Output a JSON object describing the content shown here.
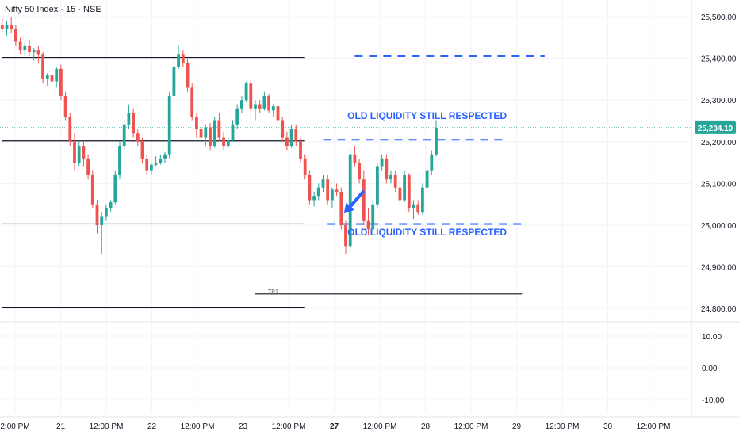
{
  "header": {
    "title": "Nifty 50 Index · 15 · NSE"
  },
  "colors": {
    "up": "#26a69a",
    "down": "#ef5350",
    "annotation": "#2962ff",
    "last_price_bg": "#26a69a",
    "level_line": "#131722",
    "grid": "#f0f3fa",
    "axis_text": "#131722"
  },
  "chart_data": {
    "type": "candlestick",
    "price_axis": {
      "ylim": [
        24770,
        25540
      ],
      "ticks": [
        "25,500.00",
        "25,400.00",
        "25,300.00",
        "25,200.00",
        "25,100.00",
        "25,000.00",
        "24,900.00",
        "24,800.00"
      ]
    },
    "oscillator_axis": {
      "ylim": [
        -14,
        14
      ],
      "ticks": [
        "10.00",
        "0.00",
        "-10.00"
      ]
    },
    "time_ticks": [
      "2:00 PM",
      "21",
      "12:00 PM",
      "22",
      "12:00 PM",
      "23",
      "12:00 PM",
      "27",
      "12:00 PM",
      "28",
      "12:00 PM",
      "29",
      "12:00 PM",
      "30",
      "12:00 PM"
    ],
    "bold_time_ticks": [
      "27"
    ],
    "last_price": {
      "label": "25,234.10",
      "value": 25234.1
    },
    "horizontal_levels": [
      {
        "style": "solid",
        "value": 25402,
        "x_range": [
          0,
          67
        ]
      },
      {
        "style": "solid",
        "value": 25202,
        "x_range": [
          0,
          67
        ]
      },
      {
        "style": "solid",
        "value": 25003,
        "x_range": [
          0,
          67
        ]
      },
      {
        "style": "solid",
        "value": 24803,
        "x_range": [
          0,
          67
        ]
      },
      {
        "style": "solid",
        "value": 24835,
        "x_range": [
          56,
          115
        ],
        "label": "TP1"
      },
      {
        "style": "dashed",
        "value": 25405,
        "x_range": [
          78,
          120
        ]
      },
      {
        "style": "dashed",
        "value": 25205,
        "x_range": [
          71,
          111
        ]
      },
      {
        "style": "dashed",
        "value": 25003,
        "x_range": [
          72,
          115
        ]
      }
    ],
    "annotations": [
      {
        "text": "OLD LIQUIDITY STILL RESPECTED",
        "value": 25262,
        "x": 94
      },
      {
        "text": "OLD LIQUIDITY STILL RESPECTED",
        "value": 24983,
        "x": 94
      }
    ],
    "arrow": {
      "from": [
        80,
        25082
      ],
      "to": [
        75.6,
        25028
      ]
    },
    "candles": [
      [
        25480,
        25495,
        25465,
        25470
      ],
      [
        25470,
        25490,
        25455,
        25480
      ],
      [
        25480,
        25500,
        25460,
        25470
      ],
      [
        25470,
        25480,
        25430,
        25440
      ],
      [
        25440,
        25450,
        25410,
        25420
      ],
      [
        25420,
        25440,
        25405,
        25430
      ],
      [
        25430,
        25445,
        25405,
        25415
      ],
      [
        25415,
        25425,
        25395,
        25420
      ],
      [
        25420,
        25430,
        25390,
        25410
      ],
      [
        25410,
        25415,
        25340,
        25350
      ],
      [
        25350,
        25365,
        25335,
        25360
      ],
      [
        25360,
        25375,
        25340,
        25345
      ],
      [
        25345,
        25380,
        25330,
        25375
      ],
      [
        25375,
        25385,
        25300,
        25310
      ],
      [
        25310,
        25320,
        25250,
        25260
      ],
      [
        25260,
        25270,
        25190,
        25200
      ],
      [
        25200,
        25220,
        25130,
        25150
      ],
      [
        25150,
        25200,
        25140,
        25190
      ],
      [
        25190,
        25200,
        25140,
        25160
      ],
      [
        25160,
        25170,
        25110,
        25120
      ],
      [
        25120,
        25130,
        25040,
        25050
      ],
      [
        25050,
        25060,
        24980,
        25000
      ],
      [
        25000,
        25030,
        24930,
        25020
      ],
      [
        25020,
        25050,
        25010,
        25040
      ],
      [
        25040,
        25060,
        25030,
        25055
      ],
      [
        25055,
        25130,
        25050,
        25120
      ],
      [
        25120,
        25200,
        25110,
        25190
      ],
      [
        25190,
        25250,
        25180,
        25240
      ],
      [
        25240,
        25290,
        25230,
        25270
      ],
      [
        25270,
        25280,
        25210,
        25220
      ],
      [
        25220,
        25230,
        25190,
        25200
      ],
      [
        25200,
        25210,
        25150,
        25160
      ],
      [
        25160,
        25170,
        25120,
        25130
      ],
      [
        25130,
        25150,
        25120,
        25145
      ],
      [
        25145,
        25165,
        25140,
        25150
      ],
      [
        25150,
        25170,
        25145,
        25160
      ],
      [
        25160,
        25175,
        25150,
        25170
      ],
      [
        25170,
        25320,
        25160,
        25310
      ],
      [
        25310,
        25400,
        25300,
        25380
      ],
      [
        25380,
        25430,
        25375,
        25410
      ],
      [
        25410,
        25420,
        25380,
        25390
      ],
      [
        25390,
        25400,
        25320,
        25330
      ],
      [
        25330,
        25340,
        25250,
        25260
      ],
      [
        25260,
        25270,
        25210,
        25230
      ],
      [
        25230,
        25250,
        25200,
        25210
      ],
      [
        25210,
        25240,
        25190,
        25235
      ],
      [
        25235,
        25245,
        25180,
        25190
      ],
      [
        25190,
        25260,
        25185,
        25250
      ],
      [
        25250,
        25270,
        25200,
        25210
      ],
      [
        25210,
        25225,
        25180,
        25190
      ],
      [
        25190,
        25210,
        25185,
        25205
      ],
      [
        25205,
        25250,
        25200,
        25240
      ],
      [
        25240,
        25290,
        25230,
        25280
      ],
      [
        25280,
        25310,
        25270,
        25300
      ],
      [
        25300,
        25345,
        25295,
        25340
      ],
      [
        25340,
        25350,
        25270,
        25280
      ],
      [
        25280,
        25300,
        25250,
        25290
      ],
      [
        25290,
        25300,
        25270,
        25280
      ],
      [
        25280,
        25320,
        25275,
        25310
      ],
      [
        25310,
        25315,
        25270,
        25275
      ],
      [
        25275,
        25290,
        25260,
        25285
      ],
      [
        25285,
        25295,
        25240,
        25250
      ],
      [
        25250,
        25260,
        25200,
        25210
      ],
      [
        25210,
        25225,
        25180,
        25190
      ],
      [
        25190,
        25240,
        25185,
        25230
      ],
      [
        25230,
        25240,
        25190,
        25200
      ],
      [
        25200,
        25210,
        25150,
        25160
      ],
      [
        25160,
        25170,
        25110,
        25120
      ],
      [
        25120,
        25130,
        25050,
        25060
      ],
      [
        25060,
        25080,
        25045,
        25070
      ],
      [
        25070,
        25100,
        25060,
        25090
      ],
      [
        25090,
        25120,
        25080,
        25110
      ],
      [
        25110,
        25120,
        25050,
        25060
      ],
      [
        25060,
        25090,
        25040,
        25085
      ],
      [
        25085,
        25100,
        25070,
        25080
      ],
      [
        25080,
        25090,
        24990,
        25000
      ],
      [
        25000,
        25010,
        24930,
        24950
      ],
      [
        24950,
        25180,
        24940,
        25170
      ],
      [
        25170,
        25190,
        25140,
        25150
      ],
      [
        25150,
        25160,
        25100,
        25110
      ],
      [
        25110,
        25130,
        25000,
        25010
      ],
      [
        25010,
        25040,
        24975,
        24990
      ],
      [
        24990,
        25060,
        24985,
        25050
      ],
      [
        25050,
        25150,
        25040,
        25140
      ],
      [
        25140,
        25170,
        25130,
        25160
      ],
      [
        25160,
        25170,
        25100,
        25110
      ],
      [
        25110,
        25130,
        25100,
        25120
      ],
      [
        25120,
        25130,
        25080,
        25090
      ],
      [
        25090,
        25110,
        25050,
        25060
      ],
      [
        25060,
        25130,
        25055,
        25120
      ],
      [
        25120,
        25125,
        25030,
        25040
      ],
      [
        25040,
        25060,
        25015,
        25050
      ],
      [
        25050,
        25060,
        25025,
        25030
      ],
      [
        25030,
        25100,
        25025,
        25090
      ],
      [
        25090,
        25140,
        25085,
        25130
      ],
      [
        25130,
        25180,
        25120,
        25170
      ],
      [
        25170,
        25250,
        25165,
        25234
      ]
    ]
  }
}
